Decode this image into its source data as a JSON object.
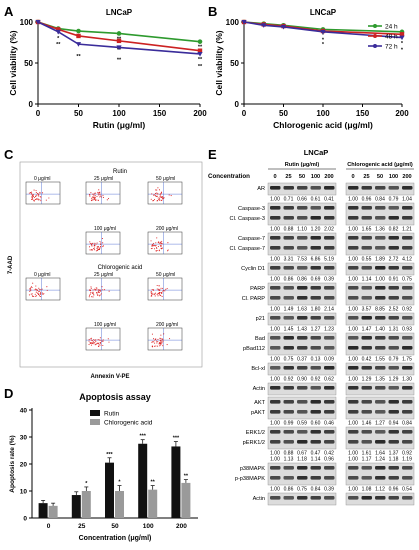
{
  "panels": {
    "a": "A",
    "b": "B",
    "c": "C",
    "d": "D",
    "e": "E"
  },
  "chart_data": [
    {
      "type": "line",
      "title": "LNCaP",
      "xlabel": "Rutin (μg/ml)",
      "ylabel": "Cell viability (%)",
      "x": [
        0,
        25,
        50,
        100,
        200
      ],
      "xticks": [
        "0",
        "50",
        "100",
        "150",
        "200"
      ],
      "xtick_values": [
        0,
        50,
        100,
        150,
        200
      ],
      "ylim": [
        0,
        100
      ],
      "yticks": [
        "0",
        "50",
        "100"
      ],
      "ytick_values": [
        0,
        50,
        100
      ],
      "series": [
        {
          "color": "#2e9a2e",
          "values": [
            100,
            92,
            89,
            86,
            76
          ],
          "sig": [
            "",
            "*",
            "**",
            "**",
            "**"
          ]
        },
        {
          "color": "#cc2222",
          "values": [
            100,
            91,
            83,
            77,
            65
          ],
          "sig": [
            "",
            "*",
            "*",
            "**",
            "**"
          ]
        },
        {
          "color": "#3a2c9a",
          "values": [
            100,
            88,
            73,
            69,
            61
          ],
          "sig": [
            "",
            "**",
            "**",
            "**",
            "**"
          ]
        }
      ]
    },
    {
      "type": "line",
      "title": "LNCaP",
      "xlabel": "Chlorogenic acid (μg/ml)",
      "ylabel": "Cell viability (%)",
      "x": [
        0,
        25,
        50,
        100,
        200
      ],
      "xticks": [
        "0",
        "50",
        "100",
        "150",
        "200"
      ],
      "xtick_values": [
        0,
        50,
        100,
        150,
        200
      ],
      "ylim": [
        0,
        100
      ],
      "yticks": [
        "0",
        "50",
        "100"
      ],
      "ytick_values": [
        0,
        50,
        100
      ],
      "legend": "top-right",
      "series": [
        {
          "name": "24 h",
          "color": "#2e9a2e",
          "values": [
            100,
            98,
            96,
            91,
            88
          ],
          "sig": [
            "",
            "",
            "",
            "*",
            "*"
          ]
        },
        {
          "name": "48 h",
          "color": "#cc2222",
          "values": [
            100,
            97,
            95,
            89,
            85
          ],
          "sig": [
            "",
            "",
            "",
            "*",
            "*"
          ]
        },
        {
          "name": "72 h",
          "color": "#3a2c9a",
          "values": [
            100,
            96,
            94,
            88,
            81
          ],
          "sig": [
            "",
            "",
            "",
            "*",
            "*"
          ]
        }
      ]
    },
    {
      "type": "bar",
      "title": "Apoptosis assay",
      "xlabel": "Concentration (μg/ml)",
      "ylabel": "Apoptosis rate (%)",
      "categories": [
        "0",
        "25",
        "50",
        "100",
        "200"
      ],
      "ylim": [
        0,
        40
      ],
      "yticks": [
        "0",
        "10",
        "20",
        "30",
        "40"
      ],
      "ytick_values": [
        0,
        10,
        20,
        30,
        40
      ],
      "legend": "top-right",
      "series": [
        {
          "name": "Rutin",
          "color": "#111111",
          "values": [
            5.5,
            8.5,
            20.5,
            27.5,
            26.5
          ],
          "err": [
            1.0,
            1.2,
            1.8,
            1.5,
            1.8
          ],
          "sig": [
            "",
            "",
            "***",
            "***",
            "***"
          ]
        },
        {
          "name": "Chlorogenic acid",
          "color": "#9a9a9a",
          "values": [
            4.5,
            10.0,
            10.0,
            10.5,
            13.0
          ],
          "err": [
            1.0,
            1.5,
            2.0,
            1.5,
            1.2
          ],
          "sig": [
            "",
            "*",
            "*",
            "**",
            "**"
          ]
        }
      ]
    }
  ],
  "flow": {
    "rutin_title": "Rutin",
    "cga_title": "Chlorogenic acid",
    "ylabel": "7-AAD",
    "xlabel": "Annexin V-PE",
    "labels": [
      "0 μg/ml",
      "25 μg/ml",
      "50 μg/ml",
      "100 μg/ml",
      "200 μg/ml"
    ]
  },
  "western": {
    "title": "LNCaP",
    "rutin_header": "Rutin (μg/ml)",
    "cga_header": "Chlorogenic acid (μg/ml)",
    "conc_label": "Concentration",
    "conc": [
      "0",
      "25",
      "50",
      "100",
      "200"
    ],
    "blocks": [
      {
        "labels": [
          "AR"
        ],
        "rutin": [
          "1.00",
          "0.71",
          "0.66",
          "0.61",
          "0.41"
        ],
        "cga": [
          "1.00",
          "0.96",
          "0.84",
          "0.79",
          "1.04"
        ]
      },
      {
        "labels": [
          "Caspase-3",
          "Cl. Caspase-3"
        ],
        "rutin": [
          "1.00",
          "0.88",
          "1.10",
          "1.20",
          "2.02"
        ],
        "cga": [
          "1.00",
          "1.65",
          "1.36",
          "0.82",
          "1.21"
        ]
      },
      {
        "labels": [
          "Caspase-7",
          "Cl. Caspase-7"
        ],
        "rutin": [
          "1.00",
          "3.31",
          "7.53",
          "6.86",
          "5.19"
        ],
        "cga": [
          "1.00",
          "0.55",
          "1.89",
          "2.72",
          "4.12"
        ]
      },
      {
        "labels": [
          "Cyclin D1"
        ],
        "rutin": [
          "1.00",
          "0.86",
          "0.86",
          "0.69",
          "0.39"
        ],
        "cga": [
          "1.00",
          "1.14",
          "1.00",
          "0.91",
          "0.75"
        ]
      },
      {
        "labels": [
          "PARP",
          "Cl. PARP"
        ],
        "rutin": [
          "1.00",
          "1.49",
          "1.63",
          "1.80",
          "2.14"
        ],
        "cga": [
          "1.00",
          "3.57",
          "8.85",
          "2.52",
          "0.92"
        ]
      },
      {
        "labels": [
          "p21"
        ],
        "rutin": [
          "1.00",
          "1.45",
          "1.43",
          "1.27",
          "1.23"
        ],
        "cga": [
          "1.00",
          "1.47",
          "1.40",
          "1.31",
          "0.93"
        ]
      },
      {
        "labels": [
          "Bad",
          "pBad112"
        ],
        "rutin": [
          "1.00",
          "0.75",
          "0.37",
          "0.13",
          "0.09"
        ],
        "cga": [
          "1.00",
          "0.42",
          "1.55",
          "0.79",
          "1.75"
        ]
      },
      {
        "labels": [
          "Bcl-xl"
        ],
        "rutin": [
          "1.00",
          "0.92",
          "0.90",
          "0.92",
          "0.62"
        ],
        "cga": [
          "1.00",
          "1.29",
          "1.35",
          "1.29",
          "1.30"
        ]
      },
      {
        "labels": [
          "Actin"
        ],
        "rutin": [],
        "cga": []
      },
      {
        "labels": [
          "AKT",
          "pAKT"
        ],
        "rutin": [
          "1.00",
          "0.99",
          "0.59",
          "0.60",
          "0.46"
        ],
        "cga": [
          "1.00",
          "1.46",
          "1.27",
          "0.94",
          "0.84"
        ]
      },
      {
        "labels": [
          "ERK1/2",
          "pERK1/2"
        ],
        "rutin": [
          "1.00",
          "0.88",
          "0.67",
          "0.47",
          "0.42",
          "1.00",
          "1.13",
          "1.18",
          "1.14",
          "0.96"
        ],
        "cga": [
          "1.00",
          "1.61",
          "1.64",
          "1.37",
          "0.92",
          "1.00",
          "1.17",
          "1.24",
          "1.18",
          "1.19"
        ]
      },
      {
        "labels": [
          "p38MAPK",
          "p-p38MAPK"
        ],
        "rutin": [
          "1.00",
          "0.86",
          "0.75",
          "0.84",
          "0.39"
        ],
        "cga": [
          "1.00",
          "1.08",
          "1.12",
          "0.96",
          "0.54"
        ]
      },
      {
        "labels": [
          "Actin"
        ],
        "rutin": [],
        "cga": []
      }
    ]
  }
}
